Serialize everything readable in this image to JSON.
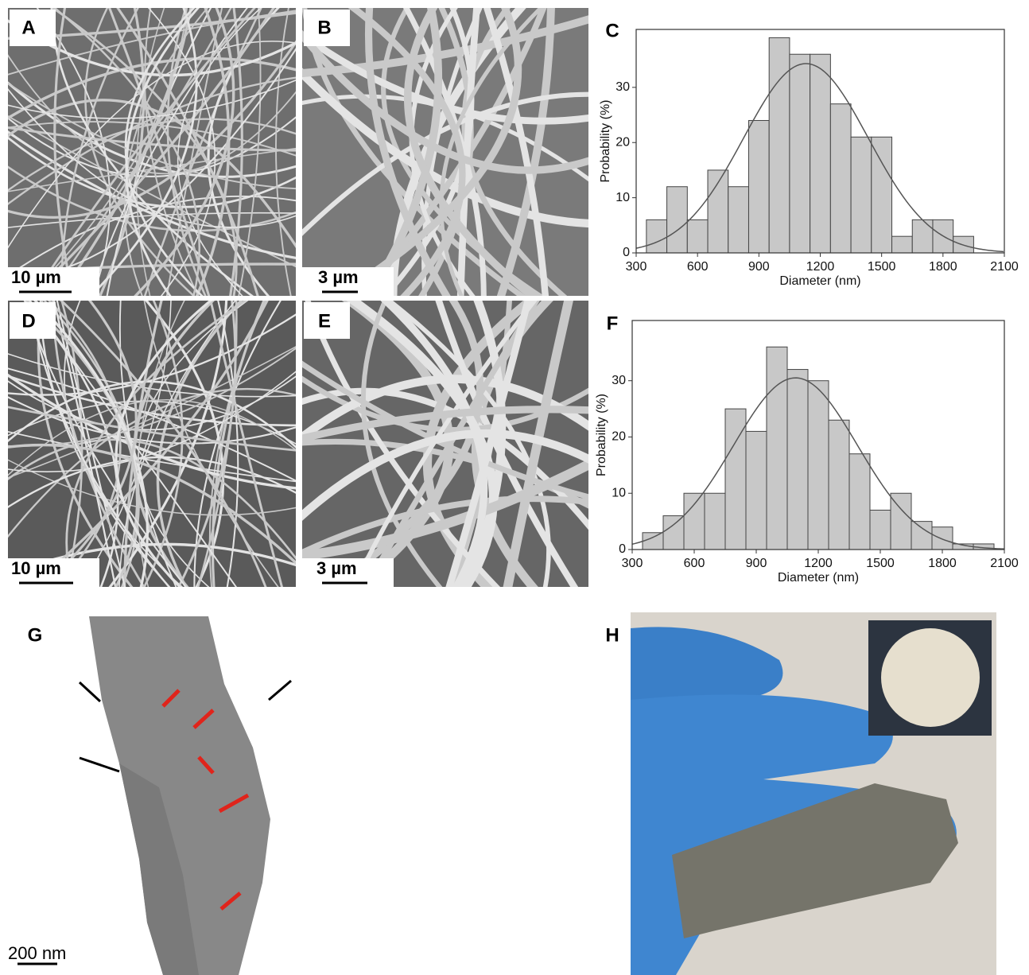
{
  "panels": {
    "a": {
      "label": "A",
      "scale": "10 µm"
    },
    "b": {
      "label": "B",
      "scale": "3 µm"
    },
    "c": {
      "label": "C"
    },
    "d": {
      "label": "D",
      "scale": "10 µm"
    },
    "e": {
      "label": "E",
      "scale": "3 µm"
    },
    "f": {
      "label": "F"
    },
    "g": {
      "label": "G",
      "scale": "200 nm"
    },
    "h": {
      "label": "H"
    }
  },
  "chart_data": [
    {
      "type": "histogram",
      "x_label": "Diameter (nm)",
      "y_label": "Probability (%)",
      "bins": [
        350,
        450,
        550,
        650,
        750,
        850,
        950,
        1050,
        1150,
        1250,
        1350,
        1450,
        1550,
        1650,
        1750,
        1850,
        1950
      ],
      "values": [
        6,
        12,
        6,
        15,
        12,
        24,
        39,
        36,
        36,
        27,
        21,
        21,
        3,
        6,
        6,
        3
      ],
      "color": "#c8c8c8",
      "fit": {
        "mean": 1130,
        "sd": 305,
        "peak": 34.3
      },
      "xlim": [
        300,
        2100
      ],
      "xticks": [
        300,
        600,
        900,
        1200,
        1500,
        1800,
        2100
      ],
      "ylim": [
        0,
        40.5
      ],
      "yticks": [
        0,
        10,
        20,
        30
      ]
    },
    {
      "type": "histogram",
      "x_label": "Diameter (nm)",
      "y_label": "Probability (%)",
      "bins": [
        350,
        450,
        550,
        650,
        750,
        850,
        950,
        1050,
        1150,
        1250,
        1350,
        1450,
        1550,
        1650,
        1750,
        1850,
        1950,
        2050
      ],
      "values": [
        3,
        6,
        10,
        10,
        25,
        21,
        36,
        32,
        30,
        23,
        17,
        7,
        10,
        5,
        4,
        1,
        1
      ],
      "color": "#c8c8c8",
      "fit": {
        "mean": 1090,
        "sd": 300,
        "peak": 30.5
      },
      "xlim": [
        300,
        2100
      ],
      "xticks": [
        300,
        600,
        900,
        1200,
        1500,
        1800,
        2100
      ],
      "ylim": [
        0,
        40.7
      ],
      "yticks": [
        0,
        10,
        20,
        30
      ]
    }
  ]
}
